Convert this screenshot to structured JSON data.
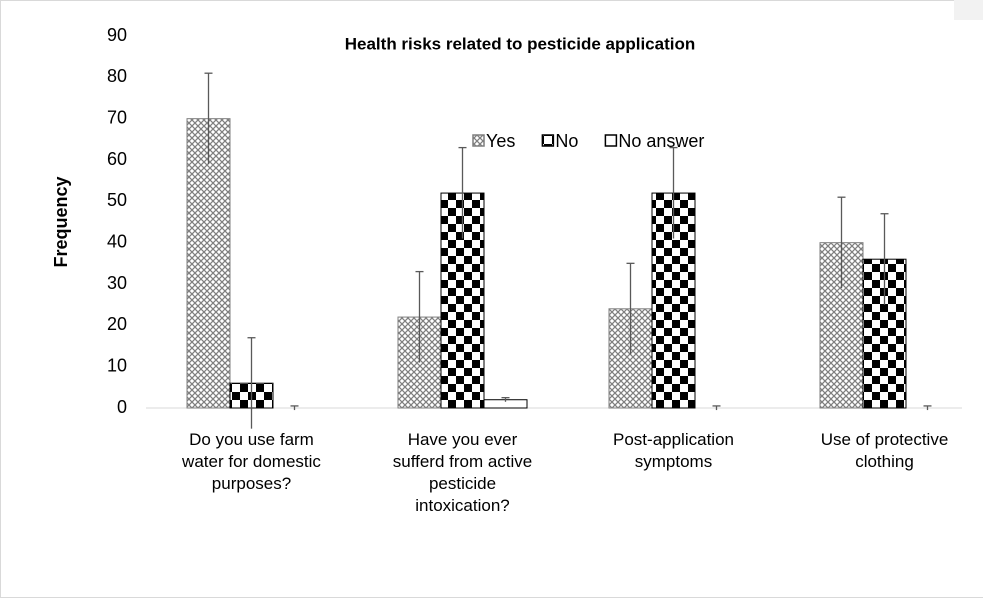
{
  "chart_data": {
    "type": "bar",
    "title": "Health risks related to pesticide application",
    "y_label": "Frequency",
    "categories": [
      "Do you use farm water for domestic purposes?",
      "Have you ever sufferd from active pesticide intoxication?",
      "Post-application symptoms",
      "Use of protective clothing"
    ],
    "series": [
      {
        "name": "Yes",
        "color": "#7f7f7f",
        "pattern": "crosshatch",
        "values": [
          70,
          22,
          24,
          40
        ],
        "errors": [
          11,
          11,
          11,
          11
        ]
      },
      {
        "name": "No",
        "color": "#000000",
        "pattern": "checker",
        "values": [
          6,
          52,
          52,
          36
        ],
        "errors": [
          11,
          11,
          11,
          11
        ]
      },
      {
        "name": "No answer",
        "color": "#000000",
        "pattern": "none",
        "values": [
          0,
          2,
          0,
          0
        ],
        "errors": [
          0.5,
          0.5,
          0.5,
          0.5
        ]
      }
    ],
    "ylim": [
      0,
      90
    ],
    "yticks": [
      0,
      10,
      20,
      30,
      40,
      50,
      60,
      70,
      80,
      90
    ],
    "grid": false,
    "legend": "top-right"
  }
}
